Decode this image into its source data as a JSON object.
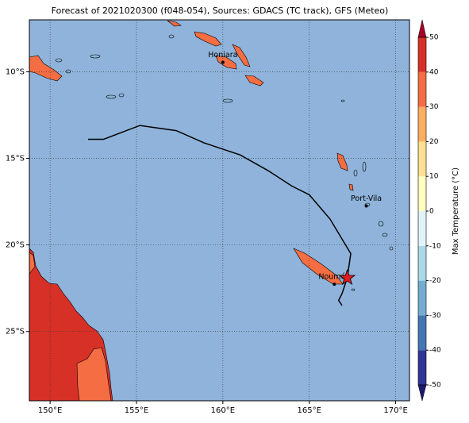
{
  "title": "Forecast of 2021020300 (f048-054), Sources: GDACS (TC track), GFS (Meteo)",
  "map": {
    "xlim": [
      148.8,
      170.8
    ],
    "ylim": [
      -29,
      -7
    ],
    "xticks": [
      {
        "value": 150,
        "label": "150°E"
      },
      {
        "value": 155,
        "label": "155°E"
      },
      {
        "value": 160,
        "label": "160°E"
      },
      {
        "value": 165,
        "label": "165°E"
      },
      {
        "value": 170,
        "label": "170°E"
      }
    ],
    "yticks": [
      {
        "value": -10,
        "label": "10°S"
      },
      {
        "value": -15,
        "label": "15°S"
      },
      {
        "value": -20,
        "label": "20°S"
      },
      {
        "value": -25,
        "label": "25°S"
      }
    ],
    "grid": true,
    "ocean_color": "#8fb3da"
  },
  "colorbar": {
    "label": "Max Temperature (°C)",
    "ticks": [
      -50,
      -40,
      -30,
      -20,
      -10,
      0,
      10,
      20,
      30,
      40,
      50
    ],
    "colors": [
      "#313695",
      "#4575b4",
      "#74add1",
      "#abd9e9",
      "#e0f3f8",
      "#ffffbf",
      "#fee090",
      "#fdae61",
      "#f46d43",
      "#d73027"
    ],
    "under": "#1a1a6e",
    "over": "#a50026"
  },
  "track": {
    "color": "#000000",
    "lon": [
      152.2,
      153.1,
      155.2,
      157.3,
      158.9,
      161.0,
      162.6,
      164.0,
      165.0,
      166.2,
      167.4,
      167.2,
      166.9,
      166.7,
      166.9
    ],
    "lat": [
      -13.9,
      -13.9,
      -13.1,
      -13.4,
      -14.1,
      -14.8,
      -15.7,
      -16.6,
      -17.1,
      -18.5,
      -20.5,
      -21.9,
      -22.8,
      -23.2,
      -23.5
    ],
    "position": {
      "lon": 167.2,
      "lat": -21.9
    }
  },
  "cities": [
    {
      "name": "Honiara",
      "lon": 160.0,
      "lat": -9.45
    },
    {
      "name": "Port-Vila",
      "lon": 168.3,
      "lat": -17.75
    },
    {
      "name": "Nouméa",
      "lon": 166.45,
      "lat": -22.27
    }
  ]
}
